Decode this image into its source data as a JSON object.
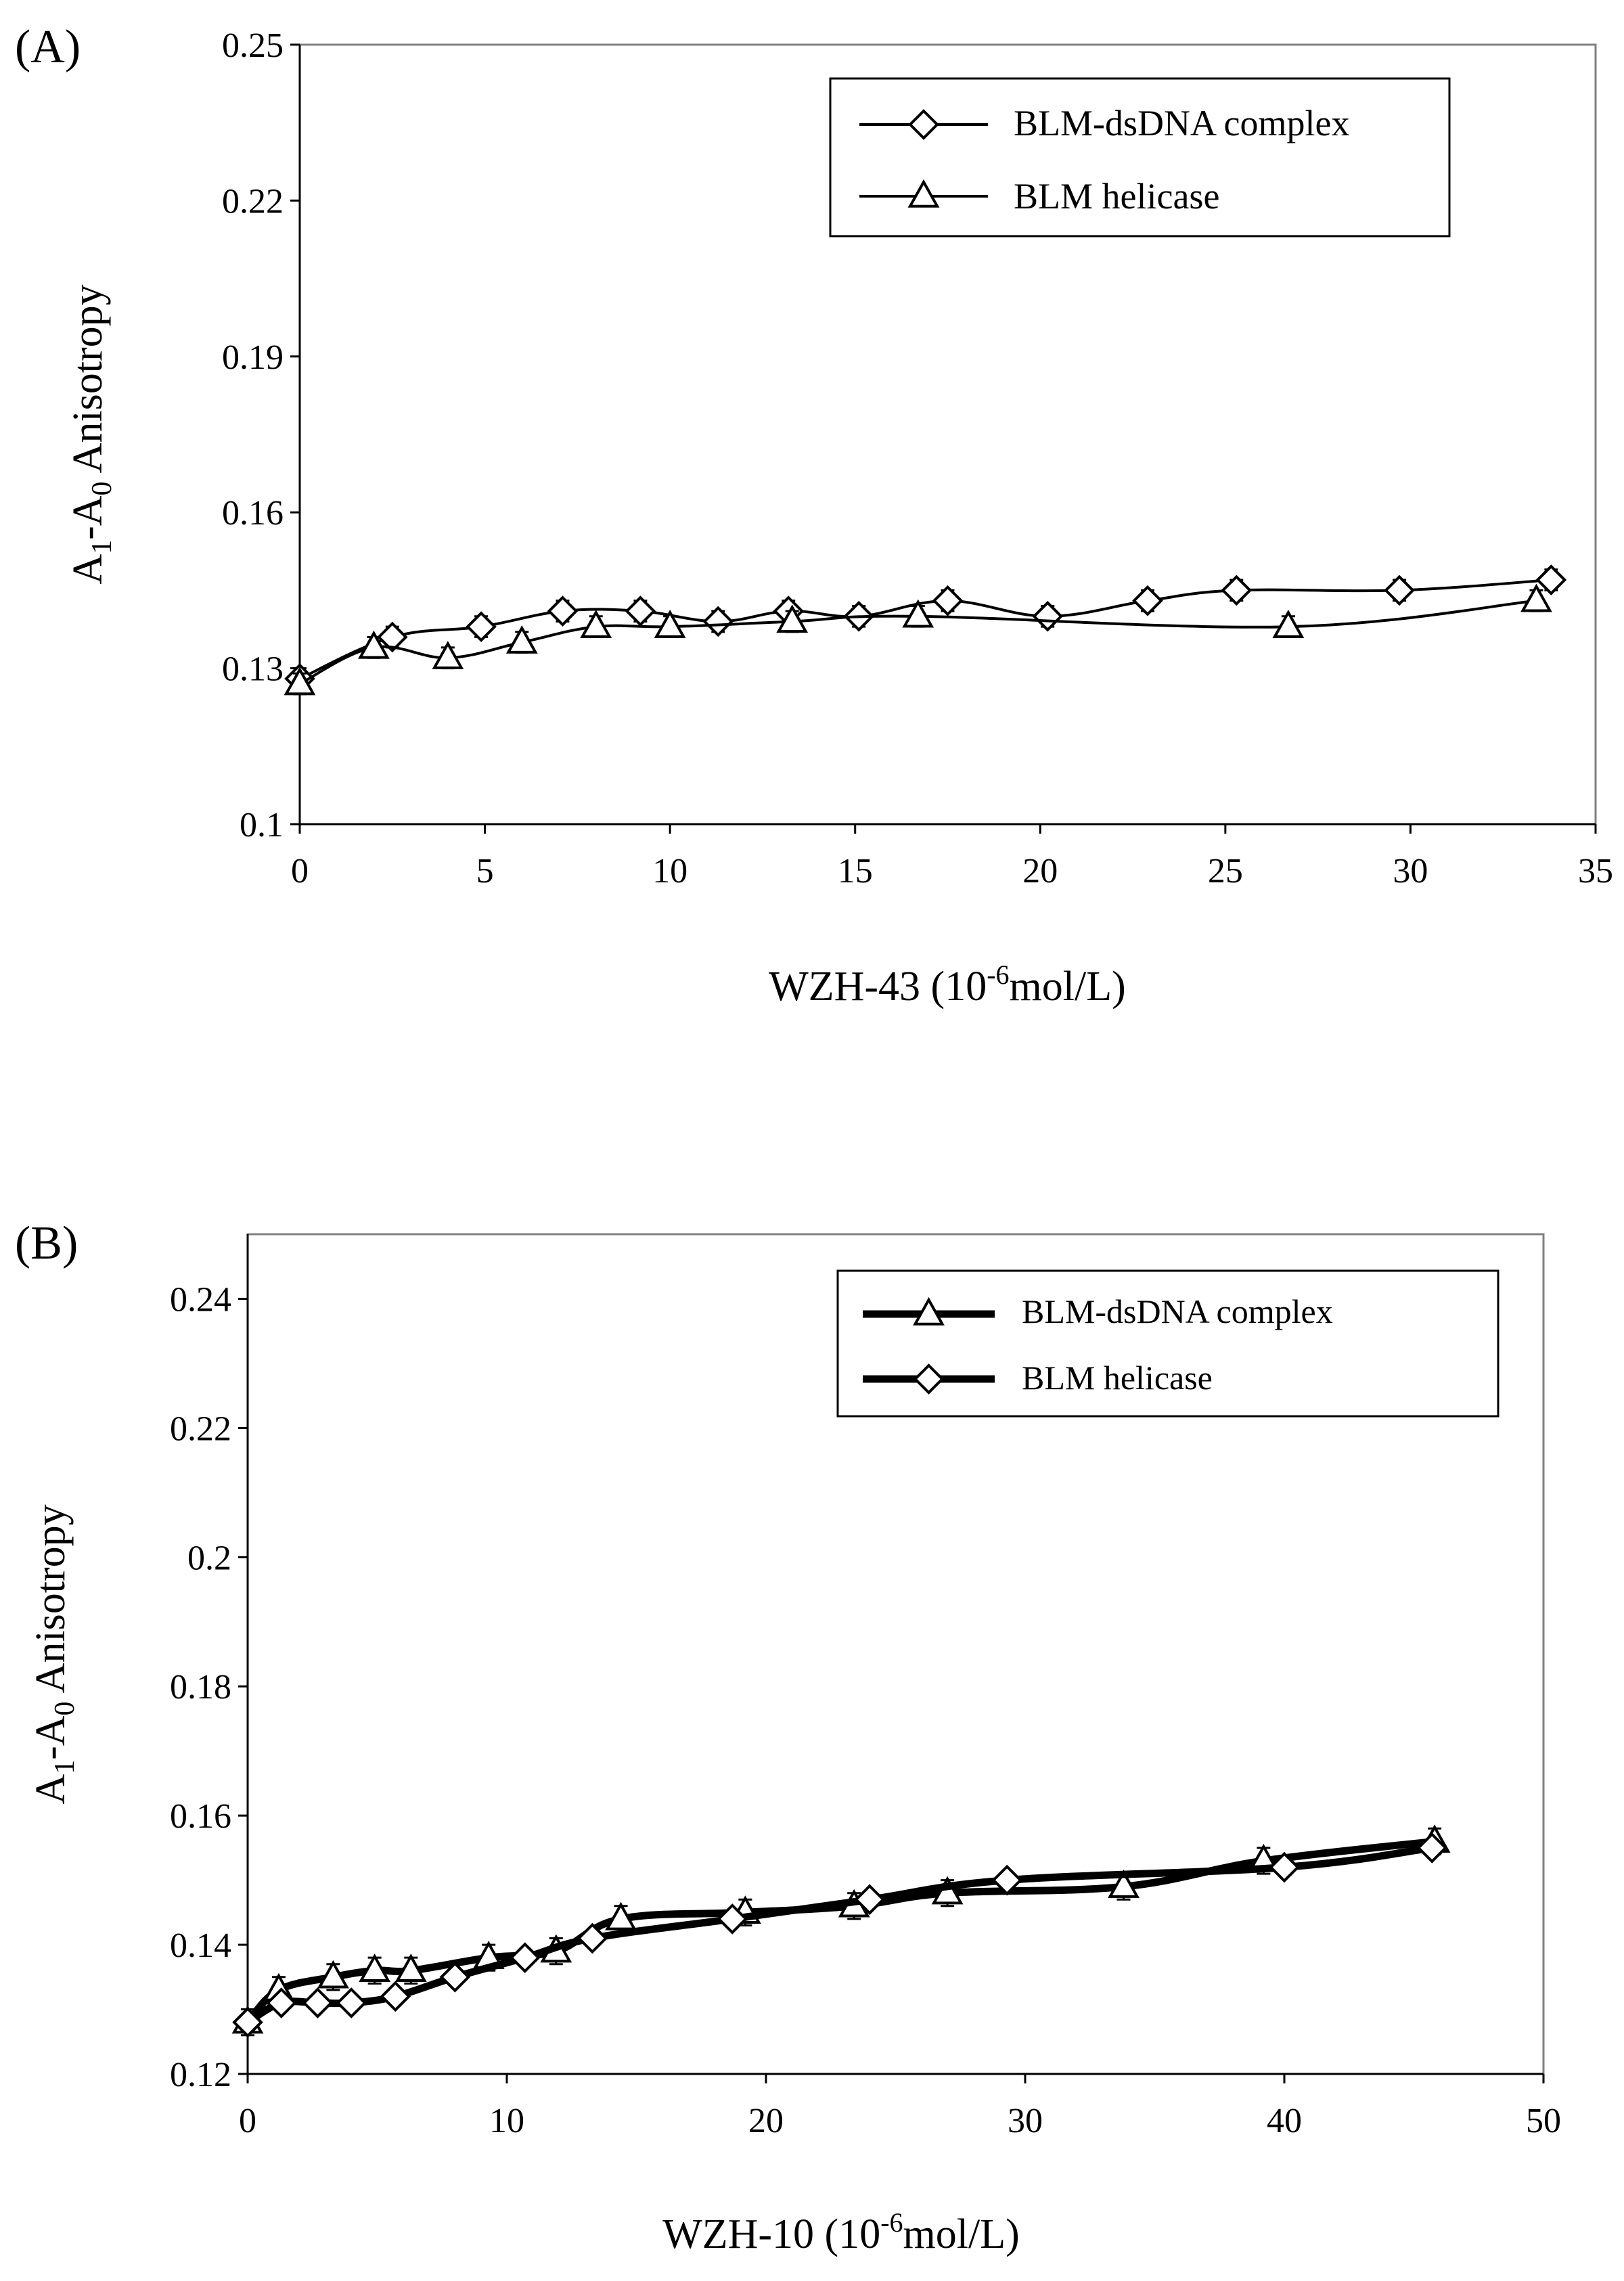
{
  "chart_data": [
    {
      "type": "line",
      "panel_label": "(A)",
      "xlabel": "WZH-43 (10-6mol/L)",
      "xlabel_parts": {
        "prefix": "WZH-43 (10",
        "sup": "-6",
        "suffix": "mol/L)"
      },
      "ylabel": "A1-A0 Anisotropy",
      "ylabel_parts": {
        "a": "A",
        "sub1": "1",
        "mid": "-A",
        "sub2": "0",
        "rest": " Anisotropy"
      },
      "xlim": [
        0,
        35
      ],
      "ylim": [
        0.1,
        0.25
      ],
      "xticks": [
        0,
        5,
        10,
        15,
        20,
        25,
        30,
        35
      ],
      "xtick_labels": [
        "0",
        "5",
        "10",
        "15",
        "20",
        "25",
        "30",
        "35"
      ],
      "yticks": [
        0.1,
        0.13,
        0.16,
        0.19,
        0.22,
        0.25
      ],
      "ytick_labels": [
        "0.1",
        "0.13",
        "0.16",
        "0.19",
        "0.22",
        "0.25"
      ],
      "grid": false,
      "legend_position": "top-right",
      "series": [
        {
          "name": "BLM-dsDNA complex",
          "marker": "diamond",
          "line_weight": "thin",
          "x": [
            0,
            2.5,
            4.9,
            7.1,
            9.2,
            11.3,
            13.2,
            15.1,
            17.5,
            20.2,
            22.9,
            25.3,
            29.7,
            33.8
          ],
          "y": [
            0.128,
            0.136,
            0.138,
            0.141,
            0.141,
            0.139,
            0.141,
            0.14,
            0.143,
            0.14,
            0.143,
            0.145,
            0.145,
            0.147
          ],
          "err": [
            0.002,
            0.002,
            0.002,
            0.002,
            0.002,
            0.002,
            0.002,
            0.002,
            0.002,
            0.002,
            0.002,
            0.002,
            0.002,
            0.002
          ]
        },
        {
          "name": "BLM helicase",
          "marker": "triangle",
          "line_weight": "thin",
          "x": [
            0,
            2,
            4,
            6,
            8,
            10,
            13.3,
            16.7,
            26.7,
            33.4
          ],
          "y": [
            0.127,
            0.134,
            0.132,
            0.135,
            0.138,
            0.138,
            0.139,
            0.14,
            0.138,
            0.143
          ],
          "err": [
            0.002,
            0.002,
            0.002,
            0.002,
            0.002,
            0.002,
            0.002,
            0.002,
            0.002,
            0.002
          ]
        }
      ]
    },
    {
      "type": "line",
      "panel_label": "(B)",
      "xlabel": "WZH-10 (10-6mol/L)",
      "xlabel_parts": {
        "prefix": "WZH-10 (10",
        "sup": "-6",
        "suffix": "mol/L)"
      },
      "ylabel": "A1-A0 Anisotropy",
      "ylabel_parts": {
        "a": "A",
        "sub1": "1",
        "mid": "-A",
        "sub2": "0",
        "rest": " Anisotropy"
      },
      "xlim": [
        0,
        50
      ],
      "ylim": [
        0.12,
        0.25
      ],
      "xticks": [
        0,
        10,
        20,
        30,
        40,
        50
      ],
      "xtick_labels": [
        "0",
        "10",
        "20",
        "30",
        "40",
        "50"
      ],
      "yticks": [
        0.12,
        0.14,
        0.16,
        0.18,
        0.2,
        0.22,
        0.24
      ],
      "ytick_labels": [
        "0.12",
        "0.14",
        "0.16",
        "0.18",
        "0.2",
        "0.22",
        "0.24"
      ],
      "grid": false,
      "legend_position": "top-right",
      "series": [
        {
          "name": "BLM-dsDNA complex",
          "marker": "triangle",
          "line_weight": "thick",
          "x": [
            0,
            1.2,
            3.3,
            4.9,
            6.3,
            9.3,
            11.9,
            14.4,
            19.2,
            23.4,
            27,
            33.8,
            39.2,
            45.8
          ],
          "y": [
            0.128,
            0.133,
            0.135,
            0.136,
            0.136,
            0.138,
            0.139,
            0.144,
            0.145,
            0.146,
            0.148,
            0.149,
            0.153,
            0.156
          ],
          "err": [
            0.002,
            0.002,
            0.002,
            0.002,
            0.002,
            0.002,
            0.002,
            0.002,
            0.002,
            0.002,
            0.002,
            0.002,
            0.002,
            0.002
          ]
        },
        {
          "name": "BLM helicase",
          "marker": "diamond",
          "line_weight": "thick",
          "x": [
            0,
            1.3,
            2.7,
            4,
            5.7,
            8,
            10.7,
            13.3,
            18.7,
            24,
            29.3,
            40,
            45.7
          ],
          "y": [
            0.128,
            0.131,
            0.131,
            0.131,
            0.132,
            0.135,
            0.138,
            0.141,
            0.144,
            0.147,
            0.15,
            0.152,
            0.155
          ],
          "err": [
            0.001,
            0.001,
            0.001,
            0.001,
            0.001,
            0.001,
            0.001,
            0.001,
            0.001,
            0.001,
            0.001,
            0.001,
            0.001
          ]
        }
      ]
    }
  ]
}
